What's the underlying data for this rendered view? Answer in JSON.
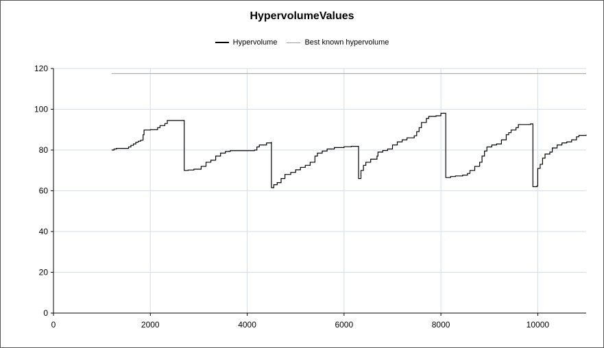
{
  "chart_data": {
    "type": "line",
    "title": "HypervolumeValues",
    "xlabel": "",
    "ylabel": "",
    "xlim": [
      0,
      11000
    ],
    "ylim": [
      0,
      120
    ],
    "x_ticks": [
      "0",
      "2000",
      "4000",
      "6000",
      "8000",
      "10000"
    ],
    "y_ticks": [
      "0",
      "20",
      "40",
      "60",
      "80",
      "100",
      "120"
    ],
    "grid": true,
    "legend_position": "top",
    "series": [
      {
        "name": "Hypervolume",
        "color": "#000000",
        "step": true,
        "points": [
          [
            1200,
            80
          ],
          [
            1250,
            80.5
          ],
          [
            1300,
            80.8
          ],
          [
            1550,
            81.5
          ],
          [
            1600,
            82.3
          ],
          [
            1650,
            83
          ],
          [
            1700,
            83.8
          ],
          [
            1750,
            84.3
          ],
          [
            1800,
            84.8
          ],
          [
            1850,
            87.5
          ],
          [
            1870,
            89.8
          ],
          [
            2000,
            90
          ],
          [
            2150,
            91
          ],
          [
            2200,
            92
          ],
          [
            2300,
            93
          ],
          [
            2350,
            94.5
          ],
          [
            2700,
            94.5
          ],
          [
            2700,
            70
          ],
          [
            2780,
            70.2
          ],
          [
            2900,
            70.6
          ],
          [
            3050,
            72
          ],
          [
            3150,
            74
          ],
          [
            3250,
            75
          ],
          [
            3350,
            77
          ],
          [
            3450,
            78.5
          ],
          [
            3550,
            79.3
          ],
          [
            3650,
            79.7
          ],
          [
            4150,
            80
          ],
          [
            4200,
            81.5
          ],
          [
            4250,
            82.5
          ],
          [
            4400,
            83.5
          ],
          [
            4500,
            84
          ],
          [
            4500,
            61.5
          ],
          [
            4550,
            63
          ],
          [
            4620,
            64
          ],
          [
            4700,
            66
          ],
          [
            4780,
            68
          ],
          [
            4900,
            69
          ],
          [
            5000,
            70.3
          ],
          [
            5100,
            71.5
          ],
          [
            5200,
            72.5
          ],
          [
            5300,
            74
          ],
          [
            5400,
            77
          ],
          [
            5450,
            78.5
          ],
          [
            5550,
            79.5
          ],
          [
            5650,
            80.5
          ],
          [
            5800,
            81.2
          ],
          [
            6000,
            81.6
          ],
          [
            6150,
            81.8
          ],
          [
            6300,
            82
          ],
          [
            6300,
            66
          ],
          [
            6350,
            70
          ],
          [
            6400,
            72.5
          ],
          [
            6450,
            74
          ],
          [
            6550,
            75.5
          ],
          [
            6680,
            77
          ],
          [
            6700,
            79
          ],
          [
            6800,
            79.8
          ],
          [
            6900,
            80.5
          ],
          [
            7000,
            82.5
          ],
          [
            7100,
            84
          ],
          [
            7200,
            85
          ],
          [
            7300,
            86
          ],
          [
            7450,
            87
          ],
          [
            7500,
            89
          ],
          [
            7550,
            91
          ],
          [
            7600,
            93.5
          ],
          [
            7700,
            95.5
          ],
          [
            7750,
            96.5
          ],
          [
            7900,
            96.8
          ],
          [
            8000,
            98
          ],
          [
            8100,
            98
          ],
          [
            8100,
            66.5
          ],
          [
            8200,
            67
          ],
          [
            8300,
            67.3
          ],
          [
            8450,
            67.7
          ],
          [
            8550,
            68.5
          ],
          [
            8600,
            70
          ],
          [
            8700,
            72
          ],
          [
            8800,
            74
          ],
          [
            8850,
            77
          ],
          [
            8900,
            79.5
          ],
          [
            8950,
            81.5
          ],
          [
            9050,
            82.5
          ],
          [
            9150,
            83
          ],
          [
            9250,
            85
          ],
          [
            9350,
            87.5
          ],
          [
            9400,
            88.5
          ],
          [
            9450,
            89.8
          ],
          [
            9550,
            91
          ],
          [
            9600,
            92.5
          ],
          [
            9850,
            92.8
          ],
          [
            9900,
            92.8
          ],
          [
            9900,
            62
          ],
          [
            9980,
            62.3
          ],
          [
            10000,
            71
          ],
          [
            10050,
            73
          ],
          [
            10100,
            76
          ],
          [
            10150,
            78
          ],
          [
            10250,
            79
          ],
          [
            10300,
            81
          ],
          [
            10400,
            82.5
          ],
          [
            10500,
            83.5
          ],
          [
            10600,
            84
          ],
          [
            10700,
            85
          ],
          [
            10800,
            86.5
          ],
          [
            10850,
            87.2
          ],
          [
            11000,
            87.5
          ]
        ]
      },
      {
        "name": "Best known hypervolume",
        "color": "#a0a0a0",
        "step": false,
        "points": [
          [
            1200,
            117.5
          ],
          [
            11000,
            117.5
          ]
        ]
      }
    ]
  }
}
